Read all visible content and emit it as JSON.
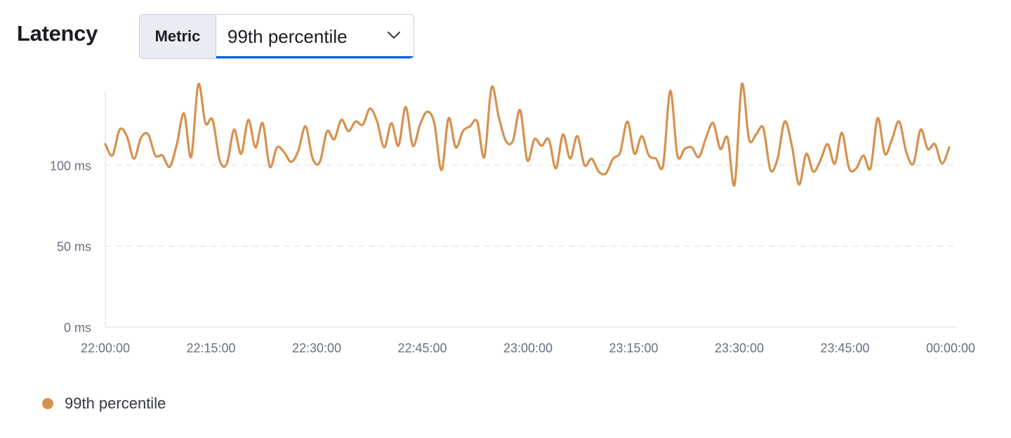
{
  "header": {
    "title": "Latency"
  },
  "metric_select": {
    "prepend_label": "Metric",
    "selected": "99th percentile",
    "icon": "chevron-down-icon"
  },
  "colors": {
    "series": "#D6914E",
    "grid": "#E6E9EE",
    "axis": "#D3DAE6",
    "accent": "#0B64DD"
  },
  "legend": {
    "items": [
      {
        "label": "99th percentile",
        "color": "#D6914E"
      }
    ]
  },
  "chart_data": {
    "type": "line",
    "title": "",
    "xlabel": "",
    "ylabel": "",
    "x_range": [
      "22:00:00",
      "00:00:00"
    ],
    "ylim": [
      0,
      150
    ],
    "y_ticks": [
      {
        "value": 0,
        "label": "0 ms"
      },
      {
        "value": 50,
        "label": "50 ms"
      },
      {
        "value": 100,
        "label": "100 ms"
      }
    ],
    "x_ticks": [
      "22:00:00",
      "22:15:00",
      "22:30:00",
      "22:45:00",
      "23:00:00",
      "23:15:00",
      "23:30:00",
      "23:45:00",
      "00:00:00"
    ],
    "grid": "horizontal-dashed",
    "legend_position": "bottom-left",
    "series": [
      {
        "name": "99th percentile",
        "values": [
          113,
          106,
          122,
          118,
          104,
          117,
          119,
          106,
          106,
          99,
          113,
          132,
          105,
          150,
          126,
          128,
          103,
          101,
          122,
          107,
          128,
          111,
          126,
          99,
          111,
          108,
          102,
          109,
          124,
          104,
          102,
          121,
          116,
          128,
          121,
          127,
          125,
          135,
          127,
          111,
          126,
          112,
          136,
          112,
          125,
          133,
          126,
          97,
          129,
          111,
          121,
          124,
          127,
          105,
          148,
          130,
          115,
          115,
          134,
          103,
          116,
          112,
          116,
          98,
          119,
          104,
          118,
          100,
          104,
          96,
          95,
          104,
          108,
          127,
          107,
          118,
          106,
          104,
          100,
          146,
          106,
          110,
          111,
          105,
          117,
          126,
          110,
          117,
          88,
          150,
          116,
          119,
          123,
          97,
          104,
          127,
          112,
          88,
          107,
          96,
          103,
          113,
          101,
          120,
          98,
          98,
          106,
          98,
          129,
          107,
          116,
          127,
          108,
          101,
          122,
          110,
          113,
          101,
          111
        ]
      }
    ]
  }
}
